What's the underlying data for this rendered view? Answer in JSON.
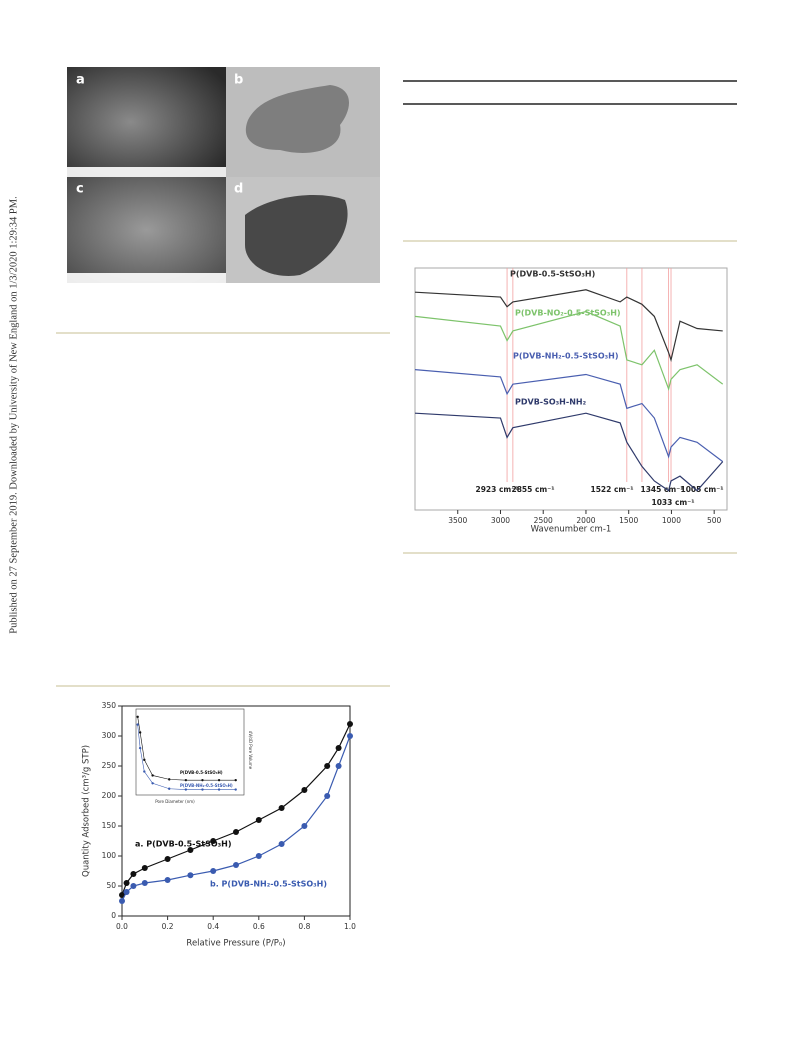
{
  "side_note": "Published on 27 September 2019. Downloaded by University of New England on 1/3/2020 1:29:34 PM.",
  "figure_micrographs": {
    "panels": [
      "a",
      "b",
      "c",
      "d"
    ]
  },
  "chart_data": [
    {
      "type": "line",
      "x_label": "Wavenumber cm-1",
      "xlim": [
        4000,
        350
      ],
      "ylim": [
        0,
        100
      ],
      "xticks": [
        3500,
        3000,
        2500,
        2000,
        1500,
        1000,
        500
      ],
      "x": [
        4000,
        3000,
        2923,
        2855,
        2000,
        1600,
        1522,
        1345,
        1200,
        1033,
        1005,
        900,
        700,
        400
      ],
      "series": [
        {
          "name": "P(DVB-0.5-StSO₃H)",
          "color": "#333333",
          "values": [
            90,
            88,
            84,
            86,
            91,
            86,
            88,
            85,
            80,
            65,
            62,
            78,
            75,
            74
          ]
        },
        {
          "name": "P(DVB-NO₂-0.5-StSO₃H)",
          "color": "#7dc36b",
          "values": [
            80,
            76,
            70,
            74,
            82,
            76,
            62,
            60,
            66,
            50,
            54,
            58,
            60,
            52
          ]
        },
        {
          "name": "P(DVB-NH₂-0.5-StSO₃H)",
          "color": "#4a5fb0",
          "values": [
            58,
            55,
            48,
            52,
            56,
            52,
            42,
            44,
            38,
            22,
            26,
            30,
            28,
            20
          ]
        },
        {
          "name": "PDVB-SO₃H-NH₂",
          "color": "#2f3a6b",
          "values": [
            40,
            38,
            30,
            34,
            40,
            36,
            28,
            18,
            12,
            8,
            12,
            14,
            8,
            20
          ]
        }
      ],
      "annotations": [
        {
          "label": "2923 cm⁻¹",
          "x": 2923
        },
        {
          "label": "2855 cm⁻¹",
          "x": 2855
        },
        {
          "label": "1522 cm⁻¹",
          "x": 1522
        },
        {
          "label": "1345 cm⁻¹",
          "x": 1345
        },
        {
          "label": "1033 cm⁻¹",
          "x": 1033
        },
        {
          "label": "1005 cm⁻¹",
          "x": 1005
        }
      ]
    },
    {
      "type": "line",
      "x_label": "Relative Pressure (P/P₀)",
      "y_label": "Quantity Adsorbed (cm³/g STP)",
      "xlim": [
        0,
        1
      ],
      "ylim": [
        0,
        350
      ],
      "xticks": [
        {
          "value": 0,
          "label": "0.0"
        },
        0.2,
        0.4,
        0.6,
        0.8,
        {
          "value": 1,
          "label": "1.0"
        }
      ],
      "yticks": [
        0,
        50,
        100,
        150,
        200,
        250,
        300,
        350
      ],
      "markers": true,
      "x": [
        0,
        0.02,
        0.05,
        0.1,
        0.2,
        0.3,
        0.4,
        0.5,
        0.6,
        0.7,
        0.8,
        0.9,
        0.95,
        1
      ],
      "series": [
        {
          "name": "a. P(DVB-0.5-StSO₃H)",
          "color": "#111111",
          "values": [
            35,
            55,
            70,
            80,
            95,
            110,
            125,
            140,
            160,
            180,
            210,
            250,
            280,
            320
          ]
        },
        {
          "name": "b. P(DVB-NH₂-0.5-StSO₃H)",
          "color": "#3a5bb0",
          "values": [
            25,
            40,
            50,
            55,
            60,
            68,
            75,
            85,
            100,
            120,
            150,
            200,
            250,
            300
          ]
        }
      ]
    },
    {
      "type": "line",
      "x_label": "Pore Diameter (nm)",
      "y_label": "dV/dD Pore Volume",
      "xlim": [
        0,
        130
      ],
      "ylim": [
        0,
        1.1
      ],
      "markers": true,
      "x": [
        2,
        5,
        10,
        20,
        40,
        60,
        80,
        100,
        120
      ],
      "series": [
        {
          "name": "P(DVB-0.5-StSO₃H)",
          "color": "#111111",
          "values": [
            1.0,
            0.8,
            0.45,
            0.25,
            0.2,
            0.19,
            0.19,
            0.19,
            0.19
          ]
        },
        {
          "name": "P(DVB-NH₂-0.5-StSO₃H)",
          "color": "#3a5bb0",
          "values": [
            0.9,
            0.6,
            0.3,
            0.15,
            0.08,
            0.07,
            0.07,
            0.07,
            0.07
          ]
        }
      ]
    }
  ]
}
